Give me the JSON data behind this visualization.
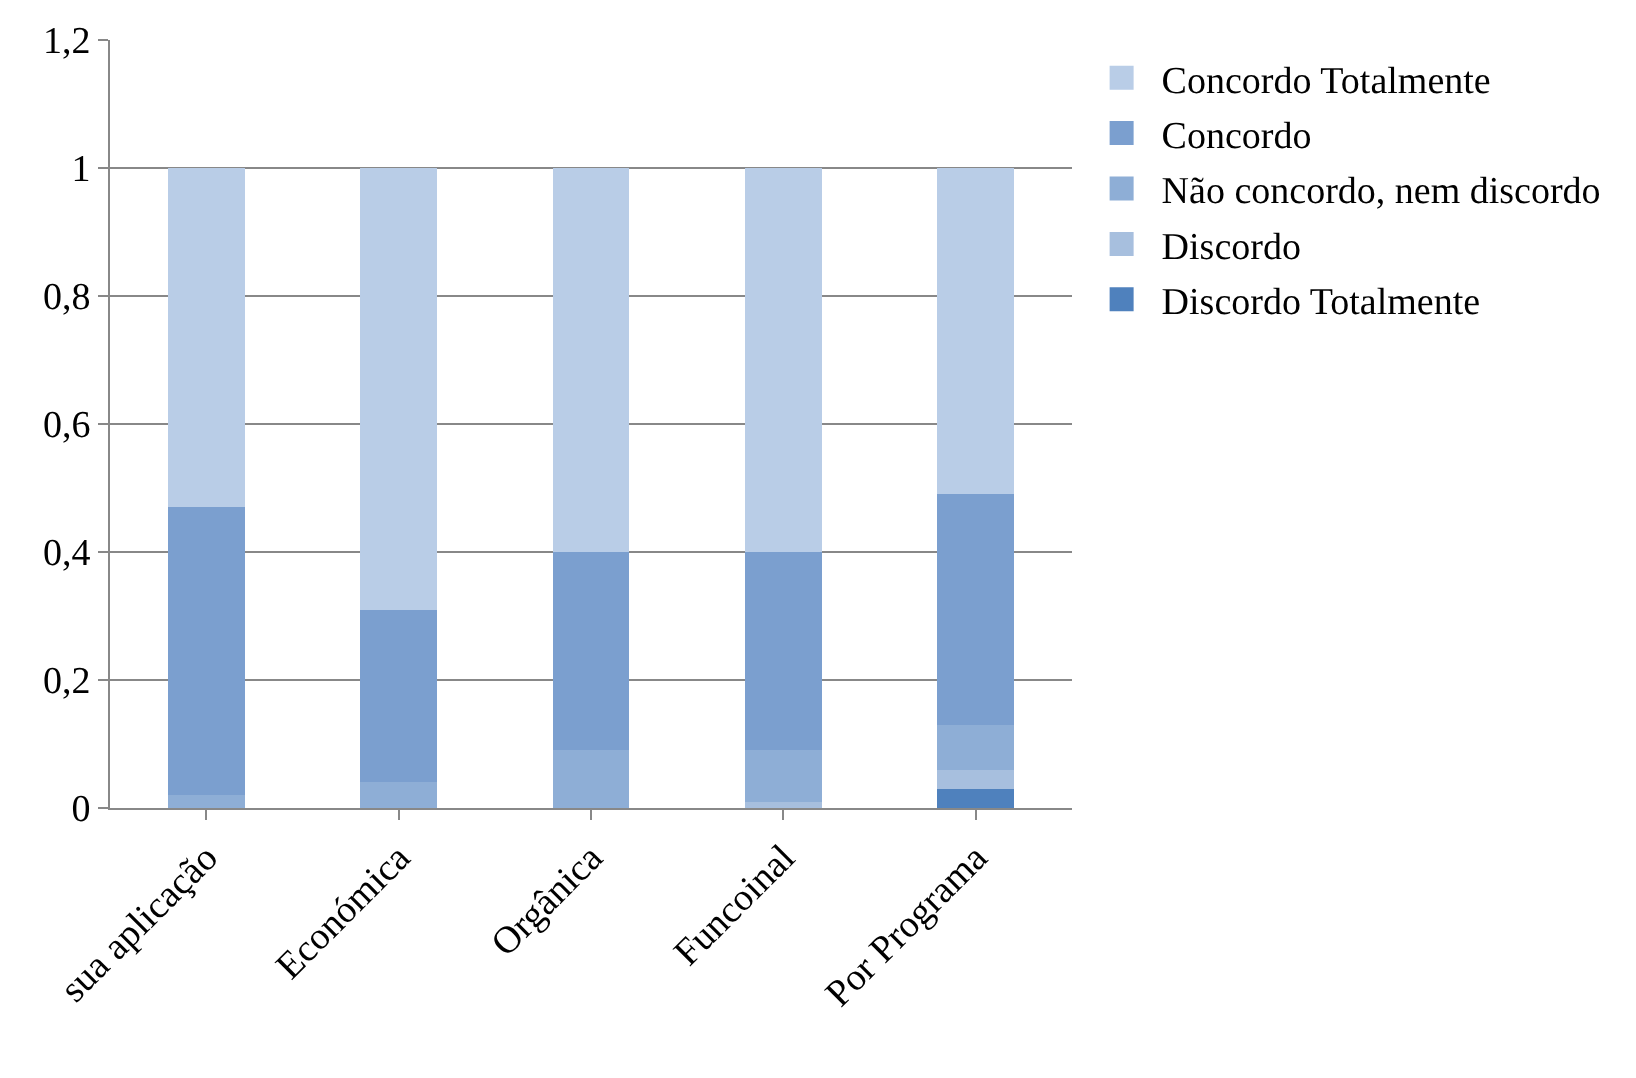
{
  "chart_data": {
    "type": "bar",
    "stacked": true,
    "categories": [
      "sua aplicação",
      "Económica",
      "Orgânica",
      "Funcoinal",
      "Por Programa"
    ],
    "series": [
      {
        "name": "Discordo Totalmente",
        "color": "#4f81bd",
        "values": [
          0,
          0,
          0,
          0,
          0.03
        ]
      },
      {
        "name": "Discordo",
        "color": "#a7bfde",
        "values": [
          0,
          0,
          0,
          0.01,
          0.03
        ]
      },
      {
        "name": "Não concordo, nem discordo",
        "color": "#8eaed6",
        "values": [
          0.02,
          0.04,
          0.09,
          0.08,
          0.07
        ]
      },
      {
        "name": "Concordo",
        "color": "#7b9fcf",
        "values": [
          0.45,
          0.27,
          0.31,
          0.31,
          0.36
        ]
      },
      {
        "name": "Concordo Totalmente",
        "color": "#b9cde7",
        "values": [
          0.53,
          0.69,
          0.6,
          0.6,
          0.51
        ]
      }
    ],
    "ylim": [
      0,
      1.2
    ],
    "yticks": [
      0,
      {
        "value": 0.2,
        "label": "0,2"
      },
      {
        "value": 0.4,
        "label": "0,4"
      },
      {
        "value": 0.6,
        "label": "0,6"
      },
      {
        "value": 0.8,
        "label": "0,8"
      },
      1,
      {
        "value": 1.2,
        "label": "1,2"
      }
    ],
    "grid": "y",
    "legend": "right"
  }
}
